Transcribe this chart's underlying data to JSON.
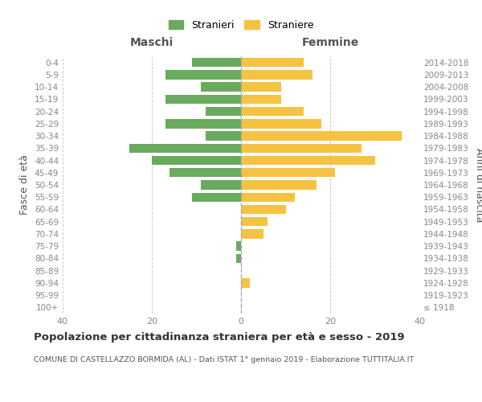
{
  "age_groups": [
    "100+",
    "95-99",
    "90-94",
    "85-89",
    "80-84",
    "75-79",
    "70-74",
    "65-69",
    "60-64",
    "55-59",
    "50-54",
    "45-49",
    "40-44",
    "35-39",
    "30-34",
    "25-29",
    "20-24",
    "15-19",
    "10-14",
    "5-9",
    "0-4"
  ],
  "birth_years": [
    "≤ 1918",
    "1919-1923",
    "1924-1928",
    "1929-1933",
    "1934-1938",
    "1939-1943",
    "1944-1948",
    "1949-1953",
    "1954-1958",
    "1959-1963",
    "1964-1968",
    "1969-1973",
    "1974-1978",
    "1979-1983",
    "1984-1988",
    "1989-1993",
    "1994-1998",
    "1999-2003",
    "2004-2008",
    "2009-2013",
    "2014-2018"
  ],
  "males": [
    0,
    0,
    0,
    0,
    1,
    1,
    0,
    0,
    0,
    11,
    9,
    16,
    20,
    25,
    8,
    17,
    8,
    17,
    9,
    17,
    11
  ],
  "females": [
    0,
    0,
    2,
    0,
    0,
    0,
    5,
    6,
    10,
    12,
    17,
    21,
    30,
    27,
    36,
    18,
    14,
    9,
    9,
    16,
    14
  ],
  "male_color": "#6aaa5e",
  "female_color": "#f5c242",
  "title": "Popolazione per cittadinanza straniera per età e sesso - 2019",
  "subtitle": "COMUNE DI CASTELLAZZO BORMIDA (AL) - Dati ISTAT 1° gennaio 2019 - Elaborazione TUTTITALIA.IT",
  "ylabel_left": "Fasce di età",
  "ylabel_right": "Anni di nascita",
  "xlabel_left": "Maschi",
  "xlabel_right": "Femmine",
  "legend_male": "Stranieri",
  "legend_female": "Straniere",
  "xlim": 40,
  "background_color": "#ffffff",
  "grid_color": "#cccccc"
}
